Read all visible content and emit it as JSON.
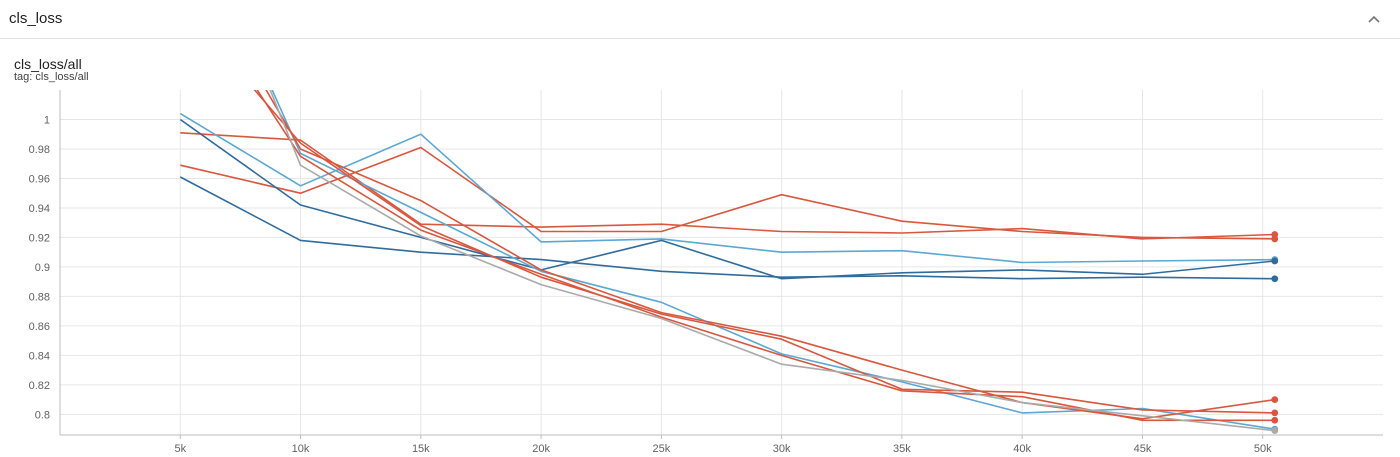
{
  "section": {
    "title": "cls_loss"
  },
  "card": {
    "title": "cls_loss/all",
    "tag": "tag: cls_loss/all"
  },
  "icons": {
    "collapse": "chevron-up-icon"
  },
  "colors": {
    "grid": "#e6e6e6",
    "axis": "#bdbdbd"
  },
  "chart_data": {
    "type": "line",
    "title": "",
    "xlabel": "",
    "ylabel": "",
    "xlim": [
      0,
      55000
    ],
    "ylim": [
      0.786,
      1.02
    ],
    "x_ticks": [
      5000,
      10000,
      15000,
      20000,
      25000,
      30000,
      35000,
      40000,
      45000,
      50000
    ],
    "x_tick_labels": [
      "5k",
      "10k",
      "15k",
      "20k",
      "25k",
      "30k",
      "35k",
      "40k",
      "45k",
      "50k"
    ],
    "y_ticks": [
      0.8,
      0.82,
      0.84,
      0.86,
      0.88,
      0.9,
      0.92,
      0.94,
      0.96,
      0.98,
      1
    ],
    "y_tick_labels": [
      "0.8",
      "0.82",
      "0.84",
      "0.86",
      "0.88",
      "0.9",
      "0.92",
      "0.94",
      "0.96",
      "0.98",
      "1"
    ],
    "grid": true,
    "series": [
      {
        "color": "#d9573e",
        "x": [
          5000,
          10000,
          15000,
          20000,
          25000,
          30000,
          35000,
          40000,
          45000,
          50500
        ],
        "y": [
          0.991,
          0.986,
          0.929,
          0.927,
          0.929,
          0.924,
          0.923,
          0.926,
          0.919,
          0.922
        ]
      },
      {
        "color": "#d9573e",
        "x": [
          5000,
          10000,
          15000,
          20000,
          25000,
          30000,
          35000,
          40000,
          45000,
          50500
        ],
        "y": [
          0.969,
          0.95,
          0.981,
          0.924,
          0.924,
          0.949,
          0.931,
          0.924,
          0.92,
          0.919
        ]
      },
      {
        "color": "#5ba8d4",
        "x": [
          5000,
          10000,
          15000,
          20000,
          25000,
          30000,
          35000,
          40000,
          45000,
          50500
        ],
        "y": [
          1.004,
          0.955,
          0.99,
          0.917,
          0.919,
          0.91,
          0.911,
          0.903,
          0.904,
          0.905
        ]
      },
      {
        "color": "#2f6c9e",
        "x": [
          5000,
          10000,
          15000,
          20000,
          25000,
          30000,
          35000,
          40000,
          45000,
          50500
        ],
        "y": [
          1.0,
          0.942,
          0.92,
          0.898,
          0.918,
          0.892,
          0.896,
          0.898,
          0.895,
          0.904
        ]
      },
      {
        "color": "#2f6c9e",
        "x": [
          5000,
          10000,
          15000,
          20000,
          25000,
          30000,
          35000,
          40000,
          45000,
          50500
        ],
        "y": [
          0.961,
          0.918,
          0.91,
          0.905,
          0.897,
          0.893,
          0.894,
          0.892,
          0.893,
          0.892
        ]
      },
      {
        "color": "#5ba8d4",
        "x": [
          8000,
          10000,
          15000,
          20000,
          25000,
          30000,
          35000,
          40000,
          45000,
          50500
        ],
        "y": [
          1.05,
          0.977,
          0.937,
          0.897,
          0.876,
          0.841,
          0.822,
          0.801,
          0.804,
          0.79
        ]
      },
      {
        "color": "#d9573e",
        "x": [
          7500,
          10000,
          15000,
          20000,
          25000,
          30000,
          35000,
          40000,
          45000,
          50500
        ],
        "y": [
          1.05,
          0.98,
          0.945,
          0.898,
          0.869,
          0.853,
          0.83,
          0.808,
          0.797,
          0.81
        ]
      },
      {
        "color": "#d9573e",
        "x": [
          6500,
          10000,
          15000,
          20000,
          25000,
          30000,
          35000,
          40000,
          45000,
          50500
        ],
        "y": [
          1.05,
          0.984,
          0.928,
          0.893,
          0.868,
          0.851,
          0.817,
          0.815,
          0.803,
          0.801
        ]
      },
      {
        "color": "#d9573e",
        "x": [
          7000,
          10000,
          15000,
          20000,
          25000,
          30000,
          35000,
          40000,
          45000,
          50500
        ],
        "y": [
          1.05,
          0.975,
          0.925,
          0.895,
          0.866,
          0.84,
          0.816,
          0.812,
          0.796,
          0.796
        ]
      },
      {
        "color": "#aaaaaa",
        "x": [
          8000,
          10000,
          15000,
          20000,
          25000,
          30000,
          35000,
          40000,
          45000,
          50500
        ],
        "y": [
          1.05,
          0.969,
          0.921,
          0.888,
          0.865,
          0.834,
          0.823,
          0.808,
          0.799,
          0.789
        ]
      }
    ]
  }
}
